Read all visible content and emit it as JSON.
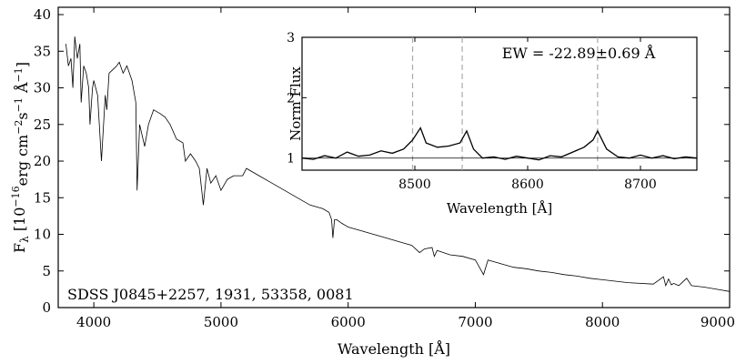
{
  "chart_data": [
    {
      "type": "line",
      "title": "",
      "xlabel": "Wavelength [Å]",
      "ylabel": "F_λ [10^-16 erg cm^-2 s^-1 Å^-1]",
      "ylabel_parts": {
        "f": "F",
        "lambda": "λ",
        "open": " [10",
        "exp16": "−16",
        "erg": "erg cm",
        "exp2": "−2",
        "s": "s",
        "exp1": "−1",
        "ang": " Å",
        "exp1b": "−1",
        "close": "]"
      },
      "xlim": [
        3720,
        9000
      ],
      "ylim": [
        0,
        41
      ],
      "xticks": [
        4000,
        5000,
        6000,
        7000,
        8000,
        9000
      ],
      "yticks": [
        0,
        5,
        10,
        15,
        20,
        25,
        30,
        35,
        40
      ],
      "annotation": "SDSS J0845+2257, 1931, 53358, 0081",
      "grid": false,
      "series": [
        {
          "name": "spectrum",
          "x": [
            3780,
            3800,
            3820,
            3835,
            3850,
            3870,
            3890,
            3900,
            3920,
            3940,
            3960,
            3970,
            3990,
            4000,
            4030,
            4060,
            4090,
            4102,
            4120,
            4150,
            4180,
            4200,
            4230,
            4260,
            4300,
            4330,
            4340,
            4360,
            4400,
            4430,
            4470,
            4520,
            4560,
            4600,
            4650,
            4700,
            4720,
            4760,
            4800,
            4830,
            4861,
            4890,
            4920,
            4960,
            5000,
            5050,
            5100,
            5170,
            5200,
            5300,
            5400,
            5500,
            5600,
            5700,
            5800,
            5850,
            5870,
            5880,
            5893,
            5910,
            5950,
            6000,
            6100,
            6200,
            6300,
            6400,
            6500,
            6562,
            6600,
            6660,
            6678,
            6700,
            6800,
            6900,
            7000,
            7065,
            7100,
            7200,
            7300,
            7400,
            7500,
            7600,
            7700,
            7800,
            7900,
            8000,
            8200,
            8400,
            8480,
            8498,
            8520,
            8542,
            8560,
            8600,
            8662,
            8700,
            8800,
            8900,
            9000
          ],
          "y": [
            36,
            33,
            34,
            30,
            37,
            34,
            36,
            28,
            33,
            32,
            30,
            25,
            30,
            31,
            29,
            20,
            29,
            27,
            32,
            32.5,
            33,
            33.5,
            32,
            33,
            31,
            28,
            16,
            25,
            22,
            25,
            27,
            26.5,
            26,
            25,
            23,
            22.5,
            20,
            21,
            20,
            19,
            14,
            19,
            17,
            18,
            16,
            17.5,
            18,
            18,
            19,
            18,
            17,
            16,
            15,
            14,
            13.5,
            13,
            12,
            9.5,
            12,
            12,
            11.5,
            11,
            10.5,
            10,
            9.5,
            9,
            8.5,
            7.5,
            8,
            8.2,
            7,
            7.8,
            7.2,
            7,
            6.5,
            4.5,
            6.5,
            6,
            5.5,
            5.3,
            5,
            4.8,
            4.5,
            4.3,
            4,
            3.8,
            3.4,
            3.2,
            4.2,
            3,
            3.9,
            3.1,
            3.3,
            3,
            4,
            3,
            2.8,
            2.5,
            2.2
          ]
        }
      ]
    },
    {
      "type": "line",
      "title": "",
      "xlabel": "Wavelength [Å]",
      "ylabel": "Norm Flux",
      "xlim": [
        8400,
        8750
      ],
      "ylim": [
        0.8,
        3.0
      ],
      "xticks": [
        8500,
        8600,
        8700
      ],
      "yticks": [
        1,
        2,
        3
      ],
      "annotation": "EW = -22.89±0.69 Å",
      "reference_lines_x": [
        8498,
        8542,
        8662
      ],
      "continuum_level": 1.0,
      "series": [
        {
          "name": "normalized spectrum",
          "x": [
            8400,
            8410,
            8420,
            8430,
            8440,
            8450,
            8460,
            8470,
            8480,
            8490,
            8498,
            8505,
            8510,
            8520,
            8530,
            8540,
            8546,
            8552,
            8560,
            8570,
            8580,
            8590,
            8600,
            8610,
            8620,
            8630,
            8640,
            8650,
            8658,
            8662,
            8670,
            8680,
            8690,
            8700,
            8710,
            8720,
            8730,
            8740,
            8750
          ],
          "y": [
            1.0,
            0.98,
            1.04,
            1.0,
            1.1,
            1.03,
            1.05,
            1.12,
            1.08,
            1.15,
            1.3,
            1.5,
            1.25,
            1.18,
            1.2,
            1.25,
            1.45,
            1.15,
            1.0,
            1.02,
            0.98,
            1.03,
            1.0,
            0.97,
            1.04,
            1.02,
            1.1,
            1.18,
            1.3,
            1.45,
            1.15,
            1.02,
            1.0,
            1.05,
            1.0,
            1.04,
            0.99,
            1.02,
            1.0
          ]
        }
      ]
    }
  ]
}
